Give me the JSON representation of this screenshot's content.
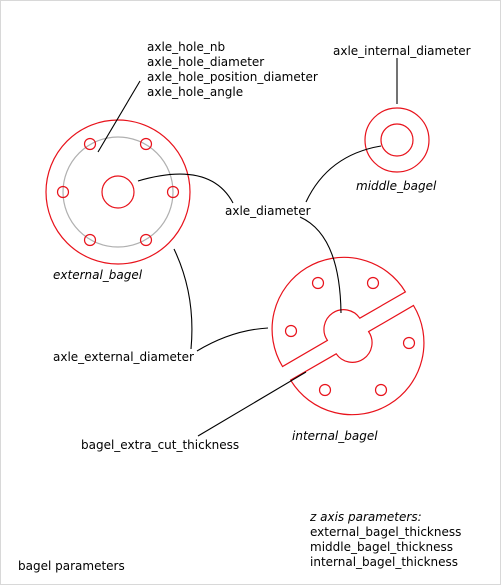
{
  "axle_hole_labels": [
    "axle_hole_nb",
    "axle_hole_diameter",
    "axle_hole_position_diameter",
    "axle_hole_angle"
  ],
  "axle_internal_diameter": "axle_internal_diameter",
  "middle_bagel": "middle_bagel",
  "axle_diameter": "axle_diameter",
  "external_bagel": "external_bagel",
  "axle_external_diameter": "axle_external_diameter",
  "bagel_extra_cut_thickness": "bagel_extra_cut_thickness",
  "internal_bagel": "internal_bagel",
  "z_axis": {
    "title": "z axis parameters:",
    "items": [
      "external_bagel_thickness",
      "middle_bagel_thickness",
      "internal_bagel_thickness"
    ]
  },
  "footer_label": "bagel parameters",
  "colors": {
    "shape": "#e8121b",
    "hole_circle": "#b0b0b0",
    "leader": "#000000",
    "text": "#000000",
    "background": "#ffffff"
  }
}
